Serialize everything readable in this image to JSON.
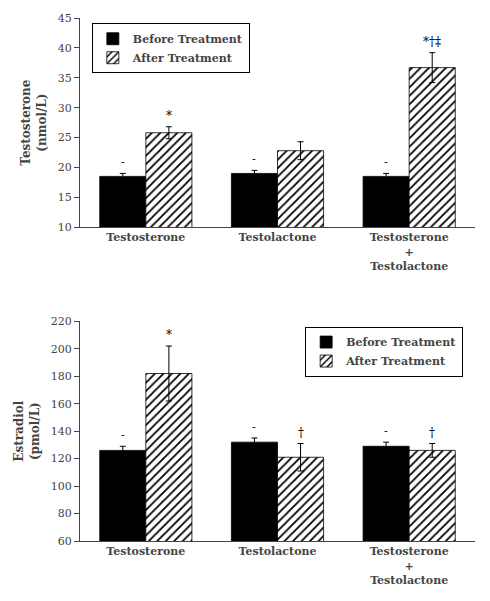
{
  "chart_data": [
    {
      "type": "bar",
      "categories": [
        "Testosterone",
        "Testolactone",
        "Testosterone\n+\nTestolactone"
      ],
      "ylabel": "Testosterone\n(nmol/L)",
      "ylim": [
        10,
        45
      ],
      "yticks": [
        10,
        15,
        20,
        25,
        30,
        35,
        40,
        45
      ],
      "grid": false,
      "legend": "upper left",
      "series": [
        {
          "name": "Before Treatment",
          "color": "#000000",
          "values": [
            18.5,
            19.0,
            18.5
          ],
          "errors": [
            0.5,
            0.5,
            0.5
          ],
          "annotations": [
            "-",
            "-",
            "-"
          ]
        },
        {
          "name": "After Treatment",
          "color": "#ffffff",
          "values": [
            25.8,
            22.8,
            36.7
          ],
          "errors": [
            1.0,
            1.5,
            2.5
          ],
          "annotations": [
            "*",
            null,
            "*†‡"
          ]
        }
      ]
    },
    {
      "type": "bar",
      "categories": [
        "Testosterone",
        "Testolactone",
        "Testosterone\n+\nTestolactone"
      ],
      "ylabel": "Estradiol\n(pmol/L)",
      "ylim": [
        60,
        220
      ],
      "yticks": [
        60,
        80,
        100,
        120,
        140,
        160,
        180,
        200,
        220
      ],
      "grid": false,
      "legend": "upper right",
      "series": [
        {
          "name": "Before Treatment",
          "color": "#000000",
          "values": [
            126,
            132,
            129
          ],
          "errors": [
            3,
            3,
            3
          ],
          "annotations": [
            "-",
            "-",
            "-"
          ]
        },
        {
          "name": "After Treatment",
          "color": "#ffffff",
          "values": [
            182,
            121,
            126
          ],
          "errors": [
            20,
            10,
            5
          ],
          "annotations": [
            "*",
            "†",
            "†"
          ]
        }
      ]
    }
  ]
}
